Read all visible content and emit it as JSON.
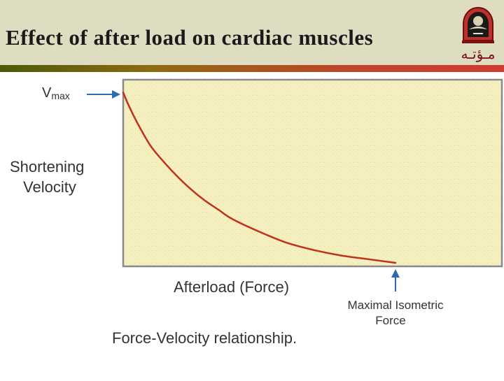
{
  "slide": {
    "title": "Effect of after load on cardiac muscles"
  },
  "logo": {
    "icon": "university-crest-icon",
    "text": "مـؤتـه",
    "color": "#c0302a"
  },
  "chart_data": {
    "type": "line",
    "title": "",
    "caption": "Force-Velocity relationship.",
    "xlabel": "Afterload (Force)",
    "ylabel_lines": [
      "Shortening",
      "Velocity"
    ],
    "vmax_label": "V",
    "vmax_subscript": "max",
    "isometric_label_lines": [
      "Maximal Isometric",
      "Force"
    ],
    "xlim": [
      0,
      1
    ],
    "ylim": [
      0,
      1
    ],
    "grid": false,
    "plot_background": "#f6f0c0",
    "line_color": "#c0301a",
    "series": [
      {
        "x": [
          0.0,
          0.02,
          0.05,
          0.1,
          0.15,
          0.2,
          0.25,
          0.3,
          0.35,
          0.4,
          0.5,
          0.6,
          0.7,
          0.8,
          0.9,
          1.0
        ],
        "y": [
          0.93,
          0.86,
          0.77,
          0.64,
          0.55,
          0.47,
          0.4,
          0.34,
          0.29,
          0.24,
          0.17,
          0.11,
          0.07,
          0.04,
          0.02,
          0.0
        ]
      }
    ]
  }
}
